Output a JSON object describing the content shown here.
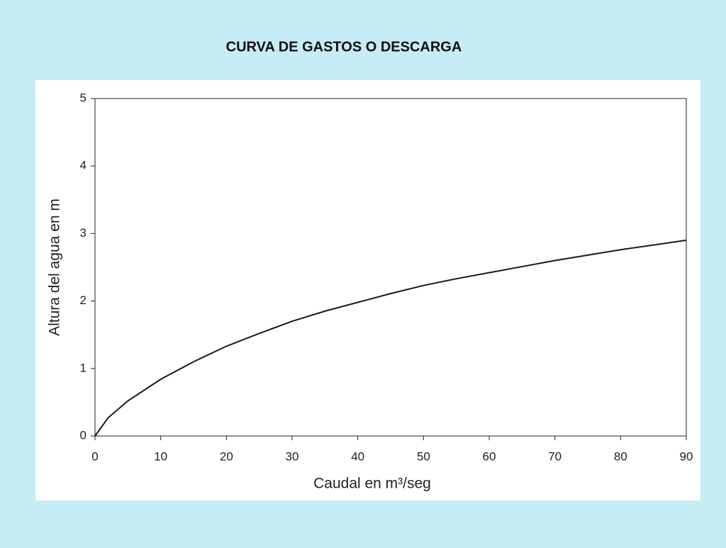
{
  "chart_data": {
    "type": "line",
    "title": "CURVA DE GASTOS O DESCARGA",
    "x_label": "Caudal en m³/seg",
    "y_label": "Altura del agua en m",
    "x": [
      0,
      2,
      5,
      10,
      15,
      20,
      25,
      30,
      35,
      40,
      45,
      50,
      55,
      60,
      65,
      70,
      75,
      80,
      85,
      90
    ],
    "series": [
      {
        "color": "#1a1a1a",
        "values": [
          0,
          0.27,
          0.52,
          0.84,
          1.1,
          1.33,
          1.52,
          1.7,
          1.85,
          1.98,
          2.11,
          2.23,
          2.33,
          2.42,
          2.51,
          2.6,
          2.68,
          2.76,
          2.83,
          2.9
        ]
      }
    ],
    "xlim": [
      0,
      90
    ],
    "xticks": [
      0,
      10,
      20,
      30,
      40,
      50,
      60,
      70,
      80,
      90
    ],
    "ylim": [
      0,
      5
    ],
    "yticks": [
      0,
      1,
      2,
      3,
      4,
      5
    ],
    "grid": false
  }
}
